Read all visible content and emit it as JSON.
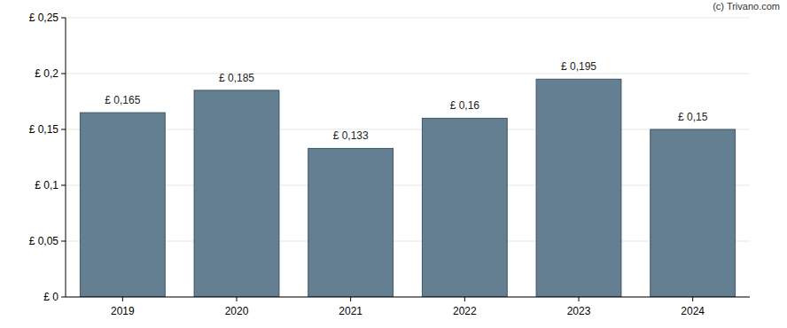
{
  "chart_data": {
    "type": "bar",
    "annotations": [
      "(c) Trivano.com"
    ],
    "categories": [
      "2019",
      "2020",
      "2021",
      "2022",
      "2023",
      "2024"
    ],
    "values": [
      0.165,
      0.185,
      0.133,
      0.16,
      0.195,
      0.15
    ],
    "value_labels": [
      "£ 0,165",
      "£ 0,185",
      "£ 0,133",
      "£ 0,16",
      "£ 0,195",
      "£ 0,15"
    ],
    "color": "#647f92",
    "ylim": [
      0,
      0.25
    ],
    "yticks": [
      {
        "value": 0,
        "label": "£ 0"
      },
      {
        "value": 0.05,
        "label": "£ 0,05"
      },
      {
        "value": 0.1,
        "label": "£ 0,1"
      },
      {
        "value": 0.15,
        "label": "£ 0,15"
      },
      {
        "value": 0.2,
        "label": "£ 0,2"
      },
      {
        "value": 0.25,
        "label": "£ 0,25"
      }
    ],
    "grid": true,
    "data_labels": true
  }
}
